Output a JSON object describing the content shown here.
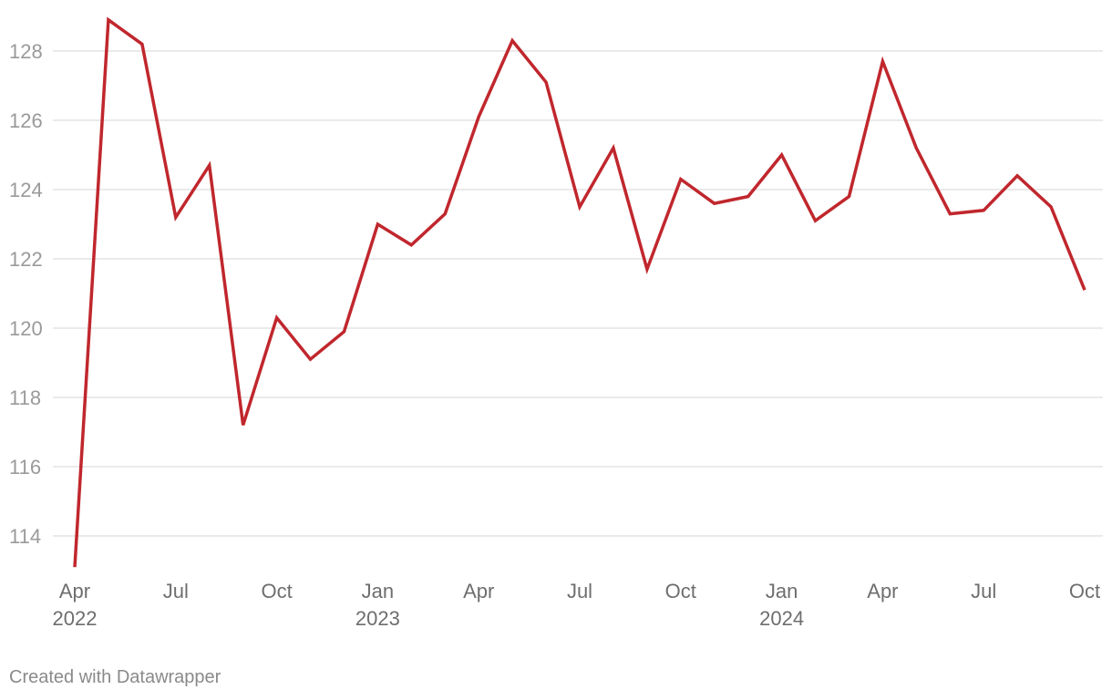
{
  "chart_data": {
    "type": "line",
    "title": "",
    "xlabel": "",
    "ylabel": "",
    "ylim": [
      113,
      129
    ],
    "y_ticks": [
      114,
      116,
      118,
      120,
      122,
      124,
      126,
      128
    ],
    "grid": true,
    "x": [
      "2022-04",
      "2022-05",
      "2022-06",
      "2022-07",
      "2022-08",
      "2022-09",
      "2022-10",
      "2022-11",
      "2022-12",
      "2023-01",
      "2023-02",
      "2023-03",
      "2023-04",
      "2023-05",
      "2023-06",
      "2023-07",
      "2023-08",
      "2023-09",
      "2023-10",
      "2023-11",
      "2023-12",
      "2024-01",
      "2024-02",
      "2024-03",
      "2024-04",
      "2024-05",
      "2024-06",
      "2024-07",
      "2024-08",
      "2024-09",
      "2024-10"
    ],
    "series": [
      {
        "color": "#c0272d",
        "values": [
          113.1,
          128.9,
          128.2,
          123.2,
          124.7,
          117.2,
          120.3,
          119.1,
          119.9,
          123.0,
          122.4,
          123.3,
          126.1,
          128.3,
          127.1,
          123.5,
          125.2,
          121.7,
          124.3,
          123.6,
          123.8,
          125.0,
          123.1,
          123.8,
          127.7,
          125.2,
          123.3,
          123.4,
          124.4,
          123.5,
          121.1
        ]
      }
    ],
    "x_tick_labels": [
      {
        "month": "Apr",
        "year": "2022"
      },
      {
        "month": "Jul",
        "year": ""
      },
      {
        "month": "Oct",
        "year": ""
      },
      {
        "month": "Jan",
        "year": "2023"
      },
      {
        "month": "Apr",
        "year": ""
      },
      {
        "month": "Jul",
        "year": ""
      },
      {
        "month": "Oct",
        "year": ""
      },
      {
        "month": "Jan",
        "year": "2024"
      },
      {
        "month": "Apr",
        "year": ""
      },
      {
        "month": "Jul",
        "year": ""
      },
      {
        "month": "Oct",
        "year": ""
      }
    ]
  },
  "footer": {
    "credit": "Created with Datawrapper"
  }
}
